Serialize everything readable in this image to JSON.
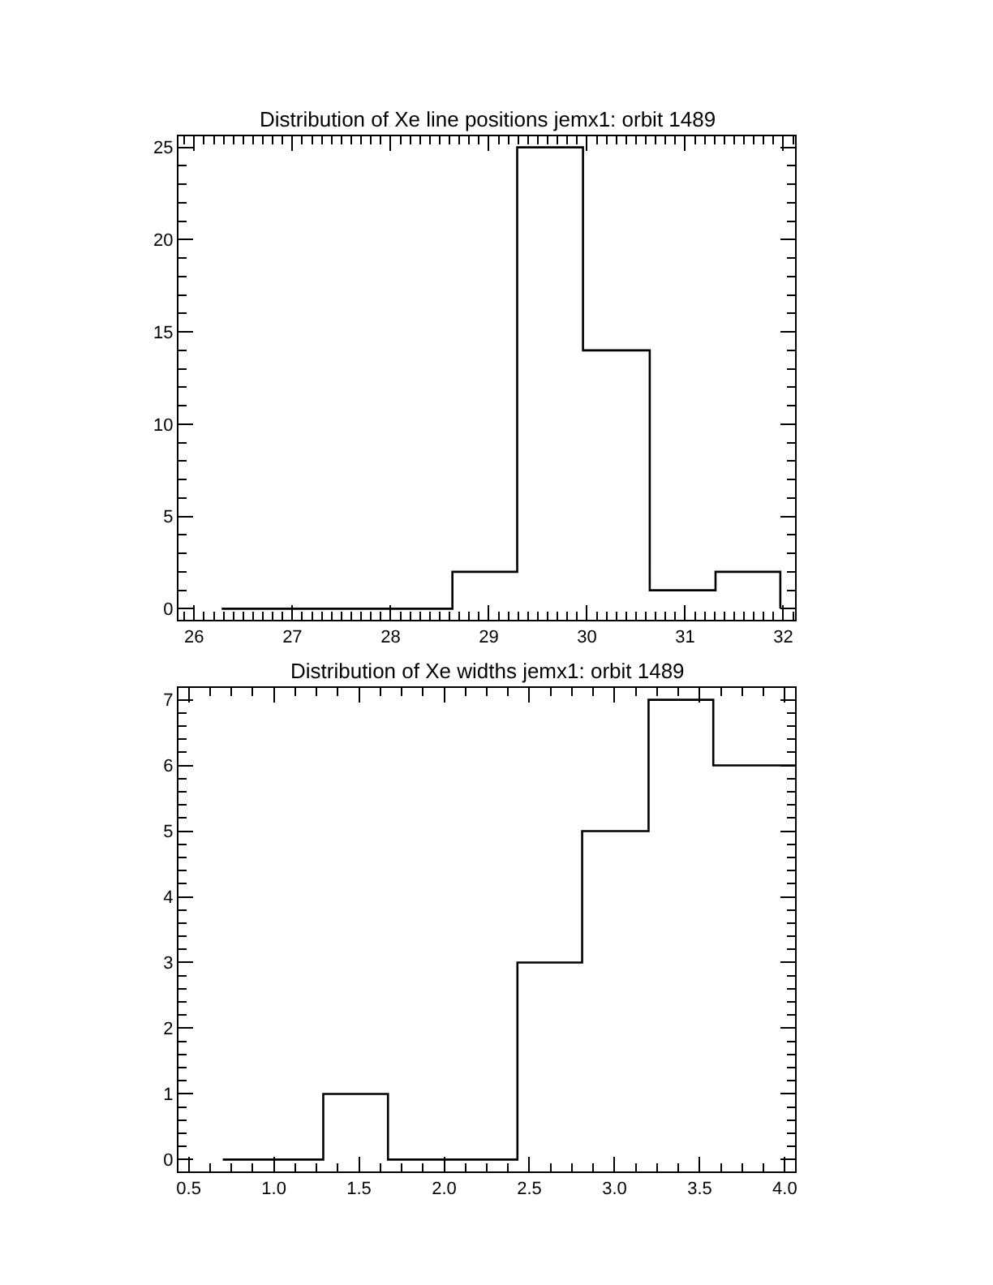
{
  "chart_data": [
    {
      "type": "step",
      "title": "Distribution of Xe line positions jemx1: orbit 1489",
      "x": [
        26.28,
        28.63,
        29.29,
        29.96,
        30.64,
        31.31,
        31.97
      ],
      "values": [
        0,
        2,
        25,
        14,
        1,
        2,
        0
      ],
      "color": "#000000",
      "xlim": [
        25.84,
        32.12
      ],
      "ylim": [
        -0.6,
        25.6
      ],
      "xticks": [
        {
          "value": 25.9,
          "label": null
        },
        26,
        {
          "value": 26.1,
          "label": null
        },
        {
          "value": 26.2,
          "label": null
        },
        {
          "value": 26.3,
          "label": null
        },
        {
          "value": 26.4,
          "label": null
        },
        {
          "value": 26.5,
          "label": null
        },
        {
          "value": 26.6,
          "label": null
        },
        {
          "value": 26.7,
          "label": null
        },
        {
          "value": 26.8,
          "label": null
        },
        {
          "value": 26.9,
          "label": null
        },
        27,
        {
          "value": 27.1,
          "label": null
        },
        {
          "value": 27.2,
          "label": null
        },
        {
          "value": 27.3,
          "label": null
        },
        {
          "value": 27.4,
          "label": null
        },
        {
          "value": 27.5,
          "label": null
        },
        {
          "value": 27.6,
          "label": null
        },
        {
          "value": 27.7,
          "label": null
        },
        {
          "value": 27.8,
          "label": null
        },
        {
          "value": 27.9,
          "label": null
        },
        28,
        {
          "value": 28.1,
          "label": null
        },
        {
          "value": 28.2,
          "label": null
        },
        {
          "value": 28.3,
          "label": null
        },
        {
          "value": 28.4,
          "label": null
        },
        {
          "value": 28.5,
          "label": null
        },
        {
          "value": 28.6,
          "label": null
        },
        {
          "value": 28.7,
          "label": null
        },
        {
          "value": 28.8,
          "label": null
        },
        {
          "value": 28.9,
          "label": null
        },
        29,
        {
          "value": 29.1,
          "label": null
        },
        {
          "value": 29.2,
          "label": null
        },
        {
          "value": 29.3,
          "label": null
        },
        {
          "value": 29.4,
          "label": null
        },
        {
          "value": 29.5,
          "label": null
        },
        {
          "value": 29.6,
          "label": null
        },
        {
          "value": 29.7,
          "label": null
        },
        {
          "value": 29.8,
          "label": null
        },
        {
          "value": 29.9,
          "label": null
        },
        30,
        {
          "value": 30.1,
          "label": null
        },
        {
          "value": 30.2,
          "label": null
        },
        {
          "value": 30.3,
          "label": null
        },
        {
          "value": 30.4,
          "label": null
        },
        {
          "value": 30.5,
          "label": null
        },
        {
          "value": 30.6,
          "label": null
        },
        {
          "value": 30.7,
          "label": null
        },
        {
          "value": 30.8,
          "label": null
        },
        {
          "value": 30.9,
          "label": null
        },
        31,
        {
          "value": 31.1,
          "label": null
        },
        {
          "value": 31.2,
          "label": null
        },
        {
          "value": 31.3,
          "label": null
        },
        {
          "value": 31.4,
          "label": null
        },
        {
          "value": 31.5,
          "label": null
        },
        {
          "value": 31.6,
          "label": null
        },
        {
          "value": 31.7,
          "label": null
        },
        {
          "value": 31.8,
          "label": null
        },
        {
          "value": 31.9,
          "label": null
        },
        32,
        {
          "value": 32.1,
          "label": null
        }
      ],
      "yticks": [
        0,
        {
          "value": 1,
          "label": null
        },
        {
          "value": 2,
          "label": null
        },
        {
          "value": 3,
          "label": null
        },
        {
          "value": 4,
          "label": null
        },
        5,
        {
          "value": 6,
          "label": null
        },
        {
          "value": 7,
          "label": null
        },
        {
          "value": 8,
          "label": null
        },
        {
          "value": 9,
          "label": null
        },
        10,
        {
          "value": 11,
          "label": null
        },
        {
          "value": 12,
          "label": null
        },
        {
          "value": 13,
          "label": null
        },
        {
          "value": 14,
          "label": null
        },
        15,
        {
          "value": 16,
          "label": null
        },
        {
          "value": 17,
          "label": null
        },
        {
          "value": 18,
          "label": null
        },
        {
          "value": 19,
          "label": null
        },
        20,
        {
          "value": 21,
          "label": null
        },
        {
          "value": 22,
          "label": null
        },
        {
          "value": 23,
          "label": null
        },
        {
          "value": 24,
          "label": null
        },
        25
      ]
    },
    {
      "type": "step",
      "title": "Distribution of Xe widths jemx1: orbit 1489",
      "x": [
        0.7,
        1.29,
        1.67,
        2.43,
        2.81,
        3.2,
        3.58,
        4.06
      ],
      "values": [
        0,
        1,
        0,
        3,
        5,
        7,
        6,
        6
      ],
      "color": "#000000",
      "xlim": [
        0.44,
        4.06
      ],
      "ylim": [
        -0.18,
        7.18
      ],
      "xticks": [
        0.5,
        {
          "value": 0.625,
          "label": null
        },
        {
          "value": 0.75,
          "label": null
        },
        {
          "value": 0.875,
          "label": null
        },
        {
          "value": 1,
          "label": "1.0"
        },
        {
          "value": 1.125,
          "label": null
        },
        {
          "value": 1.25,
          "label": null
        },
        {
          "value": 1.375,
          "label": null
        },
        1.5,
        {
          "value": 1.625,
          "label": null
        },
        {
          "value": 1.75,
          "label": null
        },
        {
          "value": 1.875,
          "label": null
        },
        {
          "value": 2,
          "label": "2.0"
        },
        {
          "value": 2.125,
          "label": null
        },
        {
          "value": 2.25,
          "label": null
        },
        {
          "value": 2.375,
          "label": null
        },
        2.5,
        {
          "value": 2.625,
          "label": null
        },
        {
          "value": 2.75,
          "label": null
        },
        {
          "value": 2.875,
          "label": null
        },
        {
          "value": 3,
          "label": "3.0"
        },
        {
          "value": 3.125,
          "label": null
        },
        {
          "value": 3.25,
          "label": null
        },
        {
          "value": 3.375,
          "label": null
        },
        3.5,
        {
          "value": 3.625,
          "label": null
        },
        {
          "value": 3.75,
          "label": null
        },
        {
          "value": 3.875,
          "label": null
        },
        {
          "value": 4,
          "label": "4.0"
        }
      ],
      "yticks": [
        0,
        {
          "value": 0.2,
          "label": null
        },
        {
          "value": 0.4,
          "label": null
        },
        {
          "value": 0.6,
          "label": null
        },
        {
          "value": 0.8,
          "label": null
        },
        1,
        {
          "value": 1.2,
          "label": null
        },
        {
          "value": 1.4,
          "label": null
        },
        {
          "value": 1.6,
          "label": null
        },
        {
          "value": 1.8,
          "label": null
        },
        2,
        {
          "value": 2.2,
          "label": null
        },
        {
          "value": 2.4,
          "label": null
        },
        {
          "value": 2.6,
          "label": null
        },
        {
          "value": 2.8,
          "label": null
        },
        3,
        {
          "value": 3.2,
          "label": null
        },
        {
          "value": 3.4,
          "label": null
        },
        {
          "value": 3.6,
          "label": null
        },
        {
          "value": 3.8,
          "label": null
        },
        4,
        {
          "value": 4.2,
          "label": null
        },
        {
          "value": 4.4,
          "label": null
        },
        {
          "value": 4.6,
          "label": null
        },
        {
          "value": 4.8,
          "label": null
        },
        5,
        {
          "value": 5.2,
          "label": null
        },
        {
          "value": 5.4,
          "label": null
        },
        {
          "value": 5.6,
          "label": null
        },
        {
          "value": 5.8,
          "label": null
        },
        6,
        {
          "value": 6.2,
          "label": null
        },
        {
          "value": 6.4,
          "label": null
        },
        {
          "value": 6.6,
          "label": null
        },
        {
          "value": 6.8,
          "label": null
        },
        7
      ]
    }
  ]
}
